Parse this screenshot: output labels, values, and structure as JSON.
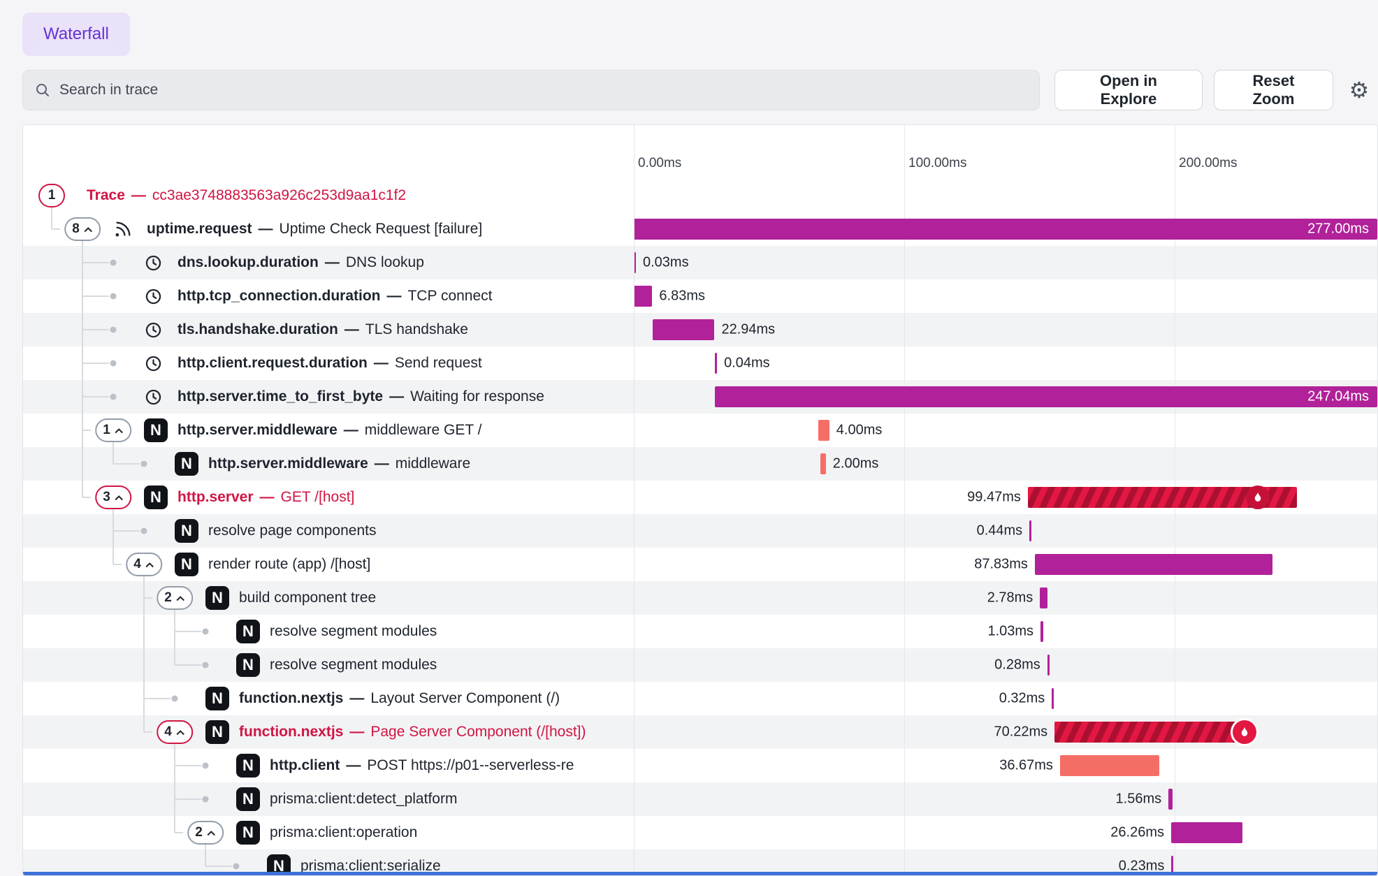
{
  "header": {
    "tab": "Waterfall"
  },
  "toolbar": {
    "search_placeholder": "Search in trace",
    "open_in_explore": "Open in Explore",
    "reset_zoom": "Reset Zoom"
  },
  "colors": {
    "magenta_bar": "#b1219a",
    "salmon_bar": "#f56e66",
    "error_bar": "#e21742",
    "error_bar_stripe": "#ac1031",
    "fire_circle": "#c51038",
    "error_text": "#d01543",
    "accent_purple": "#6531d4",
    "bottom_accent_blue": "#3d71d9"
  },
  "timeline": {
    "ticks": [
      {
        "label": "0.00ms",
        "ms": 0
      },
      {
        "label": "100.00ms",
        "ms": 100
      },
      {
        "label": "200.00ms",
        "ms": 200
      }
    ]
  },
  "rows": [
    {
      "depth": 0,
      "badge": "1",
      "chevron": false,
      "badge_error": true,
      "error": true,
      "icon": null,
      "name": "Trace",
      "desc": "cc3ae3748883563a926c253d9aa1c1f2",
      "bar": null
    },
    {
      "depth": 1,
      "badge": "8",
      "chevron": true,
      "icon": "uptime",
      "name": "uptime.request",
      "desc": "Uptime Check Request [failure]",
      "bar": {
        "start": 0,
        "dur": 277.0,
        "label": "277.00ms",
        "color": "magenta",
        "label_pos": "inside"
      }
    },
    {
      "depth": 2,
      "icon": "clock",
      "name": "dns.lookup.duration",
      "desc": "DNS lookup",
      "bar": {
        "start": 0,
        "dur": 0.03,
        "label": "0.03ms",
        "color": "magenta",
        "label_pos": "right"
      }
    },
    {
      "depth": 2,
      "icon": "clock",
      "name": "http.tcp_connection.duration",
      "desc": "TCP connect",
      "bar": {
        "start": 0,
        "dur": 6.83,
        "label": "6.83ms",
        "color": "magenta",
        "label_pos": "right"
      }
    },
    {
      "depth": 2,
      "icon": "clock",
      "name": "tls.handshake.duration",
      "desc": "TLS handshake",
      "bar": {
        "start": 6.9,
        "dur": 22.94,
        "label": "22.94ms",
        "color": "magenta",
        "label_pos": "right"
      }
    },
    {
      "depth": 2,
      "icon": "clock",
      "name": "http.client.request.duration",
      "desc": "Send request",
      "bar": {
        "start": 30.0,
        "dur": 0.04,
        "label": "0.04ms",
        "color": "magenta",
        "label_pos": "right"
      }
    },
    {
      "depth": 2,
      "icon": "clock",
      "name": "http.server.time_to_first_byte",
      "desc": "Waiting for response",
      "bar": {
        "start": 30.0,
        "dur": 247.04,
        "label": "247.04ms",
        "color": "magenta",
        "label_pos": "inside"
      }
    },
    {
      "depth": 2,
      "badge": "1",
      "chevron": true,
      "icon": "nextjs",
      "name": "http.server.middleware",
      "desc": "middleware GET /",
      "bar": {
        "start": 68.3,
        "dur": 4.0,
        "label": "4.00ms",
        "color": "salmon",
        "label_pos": "right"
      }
    },
    {
      "depth": 3,
      "icon": "nextjs",
      "name": "http.server.middleware",
      "desc": "middleware",
      "bar": {
        "start": 69.0,
        "dur": 2.0,
        "label": "2.00ms",
        "color": "salmon",
        "label_pos": "right"
      }
    },
    {
      "depth": 2,
      "badge": "3",
      "chevron": true,
      "badge_error": true,
      "error": true,
      "icon": "nextjs",
      "name": "http.server",
      "desc": "GET /[host]",
      "bar": {
        "start": 145.7,
        "dur": 99.47,
        "label": "99.47ms",
        "color": "error",
        "label_pos": "left",
        "fire": "inside"
      }
    },
    {
      "depth": 3,
      "icon": "nextjs",
      "name": "resolve page components",
      "desc": null,
      "bar": {
        "start": 146.3,
        "dur": 0.44,
        "label": "0.44ms",
        "color": "magenta",
        "label_pos": "left"
      }
    },
    {
      "depth": 3,
      "badge": "4",
      "chevron": true,
      "icon": "nextjs",
      "name": "render route (app) /[host]",
      "desc": null,
      "bar": {
        "start": 148.3,
        "dur": 87.83,
        "label": "87.83ms",
        "color": "magenta",
        "label_pos": "left"
      }
    },
    {
      "depth": 4,
      "badge": "2",
      "chevron": true,
      "icon": "nextjs",
      "name": "build component tree",
      "desc": null,
      "bar": {
        "start": 150.2,
        "dur": 2.78,
        "label": "2.78ms",
        "color": "magenta",
        "label_pos": "left"
      }
    },
    {
      "depth": 5,
      "icon": "nextjs",
      "name": "resolve segment modules",
      "desc": null,
      "bar": {
        "start": 150.4,
        "dur": 1.03,
        "label": "1.03ms",
        "color": "magenta",
        "label_pos": "left"
      }
    },
    {
      "depth": 5,
      "icon": "nextjs",
      "name": "resolve segment modules",
      "desc": null,
      "bar": {
        "start": 152.9,
        "dur": 0.28,
        "label": "0.28ms",
        "color": "magenta",
        "label_pos": "left"
      }
    },
    {
      "depth": 4,
      "icon": "nextjs",
      "name": "function.nextjs",
      "desc": "Layout Server Component (/)",
      "bar": {
        "start": 154.6,
        "dur": 0.32,
        "label": "0.32ms",
        "color": "magenta",
        "label_pos": "left"
      }
    },
    {
      "depth": 4,
      "badge": "4",
      "chevron": true,
      "badge_error": true,
      "error": true,
      "icon": "nextjs",
      "name": "function.nextjs",
      "desc": "Page Server Component (/[host])",
      "bar": {
        "start": 155.6,
        "dur": 70.22,
        "label": "70.22ms",
        "color": "error",
        "label_pos": "left",
        "fire": "end"
      }
    },
    {
      "depth": 5,
      "icon": "nextjs",
      "name": "http.client",
      "desc": "POST https://p01--serverless-re",
      "bar": {
        "start": 157.6,
        "dur": 36.67,
        "label": "36.67ms",
        "color": "salmon",
        "label_pos": "left"
      }
    },
    {
      "depth": 5,
      "icon": "nextjs",
      "name": "prisma:client:detect_platform",
      "desc": null,
      "bar": {
        "start": 197.7,
        "dur": 1.56,
        "label": "1.56ms",
        "color": "magenta",
        "label_pos": "left"
      }
    },
    {
      "depth": 5,
      "badge": "2",
      "chevron": true,
      "icon": "nextjs",
      "name": "prisma:client:operation",
      "desc": null,
      "bar": {
        "start": 198.7,
        "dur": 26.26,
        "label": "26.26ms",
        "color": "magenta",
        "label_pos": "left"
      }
    },
    {
      "depth": 6,
      "icon": "nextjs",
      "name": "prisma:client:serialize",
      "desc": null,
      "bar": {
        "start": 198.8,
        "dur": 0.23,
        "label": "0.23ms",
        "color": "magenta",
        "label_pos": "left"
      }
    }
  ]
}
